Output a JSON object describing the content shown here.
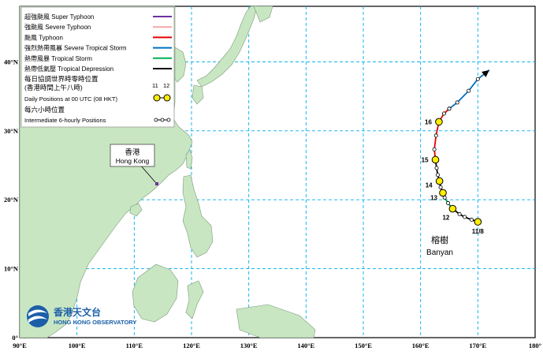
{
  "legend": {
    "items": [
      {
        "text": "超強颱風 Super Typhoon",
        "color": "#7030a0"
      },
      {
        "text": "強颱風 Severe Typhoon",
        "color": "#f4a6a6"
      },
      {
        "text": "颱風 Typhoon",
        "color": "#e60000"
      },
      {
        "text": "強烈熱帶風暴 Severe Tropical Storm",
        "color": "#0070c0"
      },
      {
        "text": "熱帶風暴 Tropical Storm",
        "color": "#00b050"
      },
      {
        "text": "熱帶低氣壓  Tropical Depression",
        "color": "#000000"
      }
    ],
    "daily_zh_1": "每日協調世界時零時位置",
    "daily_zh_2": "(香港時間上午八時)",
    "daily_en": "Daily Positions at 00 UTC (08 HKT)",
    "daily_sample_1": "11",
    "daily_sample_2": "12",
    "six_zh": "每六小時位置",
    "six_en": "Intermediate 6-hourly Positions"
  },
  "hk_label_zh": "香港",
  "hk_label_en": "Hong Kong",
  "storm_zh": "榕樹",
  "storm_en": "Banyan",
  "logo_zh": "香港天文台",
  "logo_en": "HONG KONG OBSERVATORY",
  "axes": {
    "lon_labels": [
      "90°E",
      "100°E",
      "110°E",
      "120°E",
      "130°E",
      "140°E",
      "150°E",
      "160°E",
      "170°E",
      "180°"
    ],
    "lat_labels": [
      "0°",
      "10°N",
      "20°N",
      "30°N",
      "40°N"
    ]
  },
  "track": {
    "daily": [
      {
        "label": "11/8",
        "lon": 170.0,
        "lat": 16.8
      },
      {
        "label": "12",
        "lon": 165.6,
        "lat": 18.7
      },
      {
        "label": "13",
        "lon": 163.9,
        "lat": 21.0
      },
      {
        "label": "14",
        "lon": 163.3,
        "lat": 22.7
      },
      {
        "label": "15",
        "lon": 162.6,
        "lat": 25.8
      },
      {
        "label": "16",
        "lon": 163.2,
        "lat": 31.3
      }
    ],
    "segments": [
      {
        "color": "#000000",
        "points": [
          [
            170.0,
            16.8
          ],
          [
            168.9,
            17.1
          ],
          [
            167.7,
            17.5
          ],
          [
            166.8,
            17.9
          ],
          [
            165.6,
            18.7
          ]
        ]
      },
      {
        "color": "#00b050",
        "points": [
          [
            165.6,
            18.7
          ],
          [
            164.8,
            19.5
          ],
          [
            164.2,
            20.3
          ],
          [
            163.9,
            21.0
          ]
        ]
      },
      {
        "color": "#000000",
        "points": [
          [
            163.9,
            21.0
          ],
          [
            163.5,
            21.8
          ],
          [
            163.3,
            22.7
          ],
          [
            163.0,
            23.6
          ],
          [
            162.8,
            24.6
          ],
          [
            162.6,
            25.8
          ]
        ]
      },
      {
        "color": "#e60000",
        "points": [
          [
            162.6,
            25.8
          ],
          [
            162.4,
            27.3
          ],
          [
            162.7,
            29.3
          ],
          [
            163.2,
            31.3
          ],
          [
            164.1,
            32.5
          ],
          [
            165.0,
            33.2
          ]
        ]
      },
      {
        "color": "#0070c0",
        "points": [
          [
            165.0,
            33.2
          ],
          [
            166.4,
            34.1
          ],
          [
            168.4,
            35.8
          ],
          [
            170.0,
            37.5
          ]
        ]
      }
    ],
    "arrow_end": [
      172.0,
      38.8
    ]
  }
}
